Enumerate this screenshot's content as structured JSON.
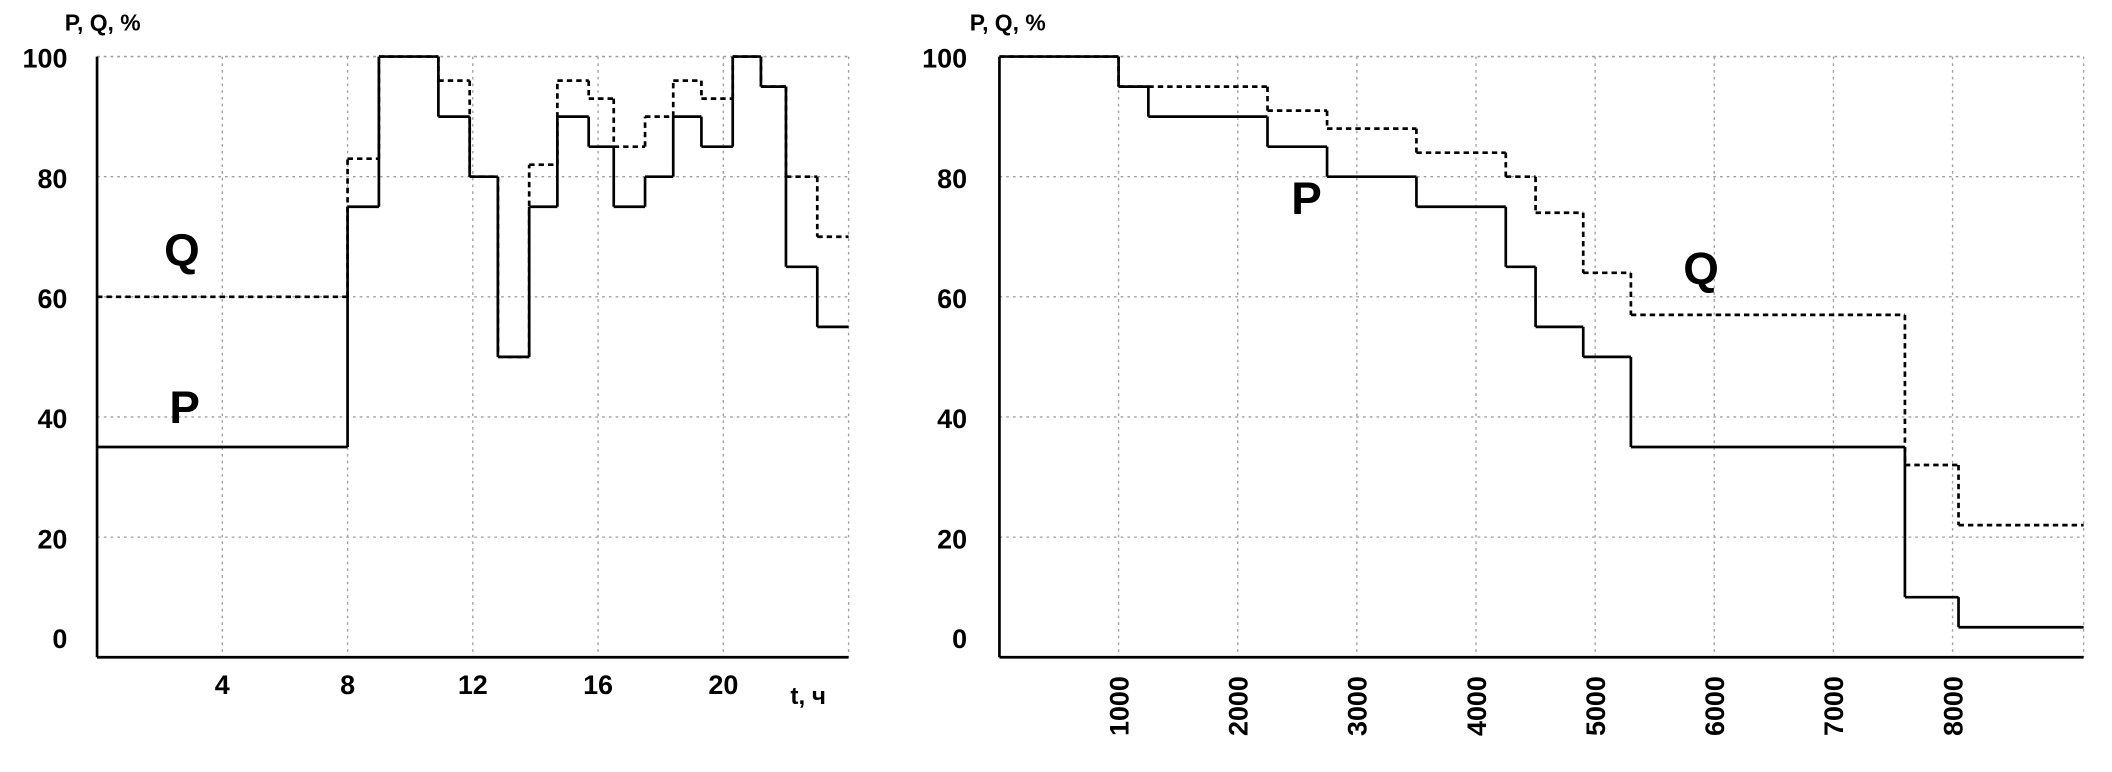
{
  "chart_data": [
    {
      "type": "step",
      "title": "P, Q, %",
      "x_label": "t, ч",
      "x": [
        0,
        8,
        9,
        10.9,
        11.9,
        12.8,
        13.8,
        14.7,
        15.7,
        16.5,
        17.5,
        18.4,
        19.3,
        20.3,
        21.2,
        22,
        23
      ],
      "series": [
        {
          "name": "P",
          "color": "#000000",
          "dashed": false,
          "values": [
            35,
            75,
            100,
            90,
            80,
            50,
            75,
            90,
            85,
            75,
            80,
            90,
            85,
            100,
            95,
            65,
            55
          ]
        },
        {
          "name": "Q",
          "color": "#000000",
          "dashed": true,
          "values": [
            60,
            83,
            100,
            96,
            80,
            50,
            82,
            96,
            93,
            85,
            90,
            96,
            93,
            100,
            95,
            80,
            70
          ]
        }
      ],
      "xlim": [
        0,
        24
      ],
      "xticks": [
        4,
        8,
        12,
        16,
        20
      ],
      "ylim": [
        0,
        100
      ],
      "yticks": [
        0,
        20,
        40,
        60,
        80,
        100
      ],
      "grid": true
    },
    {
      "type": "step",
      "title": "P, Q, %",
      "x": [
        0,
        1000,
        1250,
        2250,
        2750,
        3500,
        4250,
        4500,
        4900,
        5300,
        7600,
        8050
      ],
      "series": [
        {
          "name": "P",
          "color": "#000000",
          "dashed": false,
          "values": [
            100,
            95,
            90,
            85,
            80,
            75,
            65,
            55,
            50,
            35,
            10,
            5
          ]
        },
        {
          "name": "Q",
          "color": "#000000",
          "dashed": true,
          "values": [
            100,
            95,
            95,
            91,
            88,
            84,
            80,
            74,
            64,
            57,
            32,
            22
          ]
        }
      ],
      "xlim": [
        0,
        9100
      ],
      "xticks": [
        1000,
        2000,
        3000,
        4000,
        5000,
        6000,
        7000,
        8000
      ],
      "ylim": [
        0,
        100
      ],
      "yticks": [
        0,
        20,
        40,
        60,
        80,
        100
      ],
      "grid": true
    }
  ]
}
